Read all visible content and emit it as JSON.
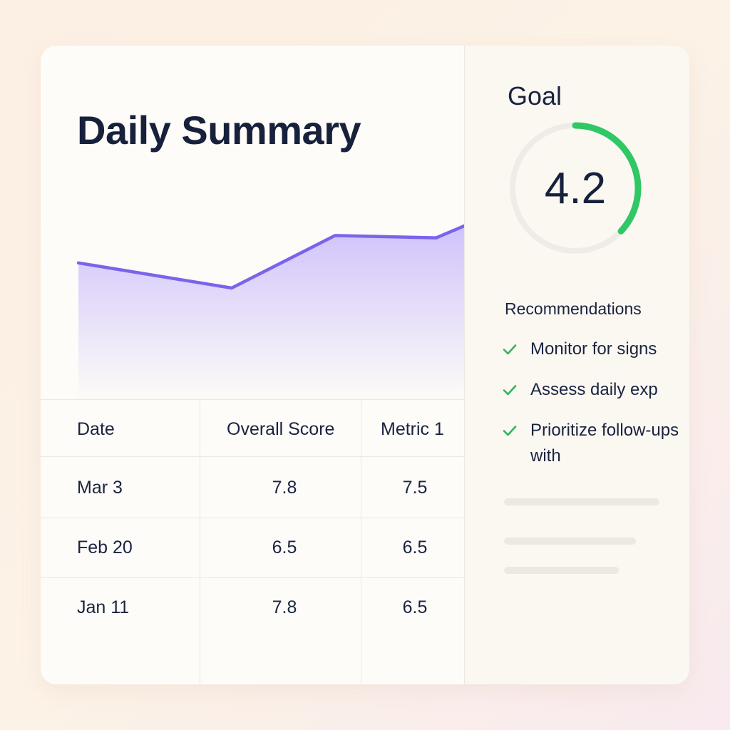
{
  "page": {
    "title": "Daily Summary"
  },
  "chart_data": {
    "type": "area",
    "x": [
      "",
      "",
      "",
      "",
      ""
    ],
    "series": [
      {
        "values": [
          6.1,
          5.0,
          7.3,
          7.2,
          7.8
        ]
      }
    ],
    "ylim": [
      0,
      10
    ],
    "grid": false,
    "colors": {
      "line": "#7b63ec",
      "fill": "#c7b8fb"
    }
  },
  "table": {
    "columns": [
      "Date",
      "Overall Score",
      "Metric 1"
    ],
    "rows": [
      [
        "Mar 3",
        "7.8",
        "7.5"
      ],
      [
        "Feb 20",
        "6.5",
        "6.5"
      ],
      [
        "Jan 11",
        "7.8",
        "6.5"
      ]
    ]
  },
  "goal": {
    "title": "Goal",
    "value": "4.2",
    "progress": 0.37,
    "colors": {
      "track": "#efece7",
      "progress": "#2fc864"
    }
  },
  "recommendations": {
    "title": "Recommendations",
    "icon": "check-icon",
    "check_color": "#2fb45c",
    "items": [
      "Monitor for signs",
      "Assess daily exp",
      "Prioritize follow-ups with"
    ]
  }
}
